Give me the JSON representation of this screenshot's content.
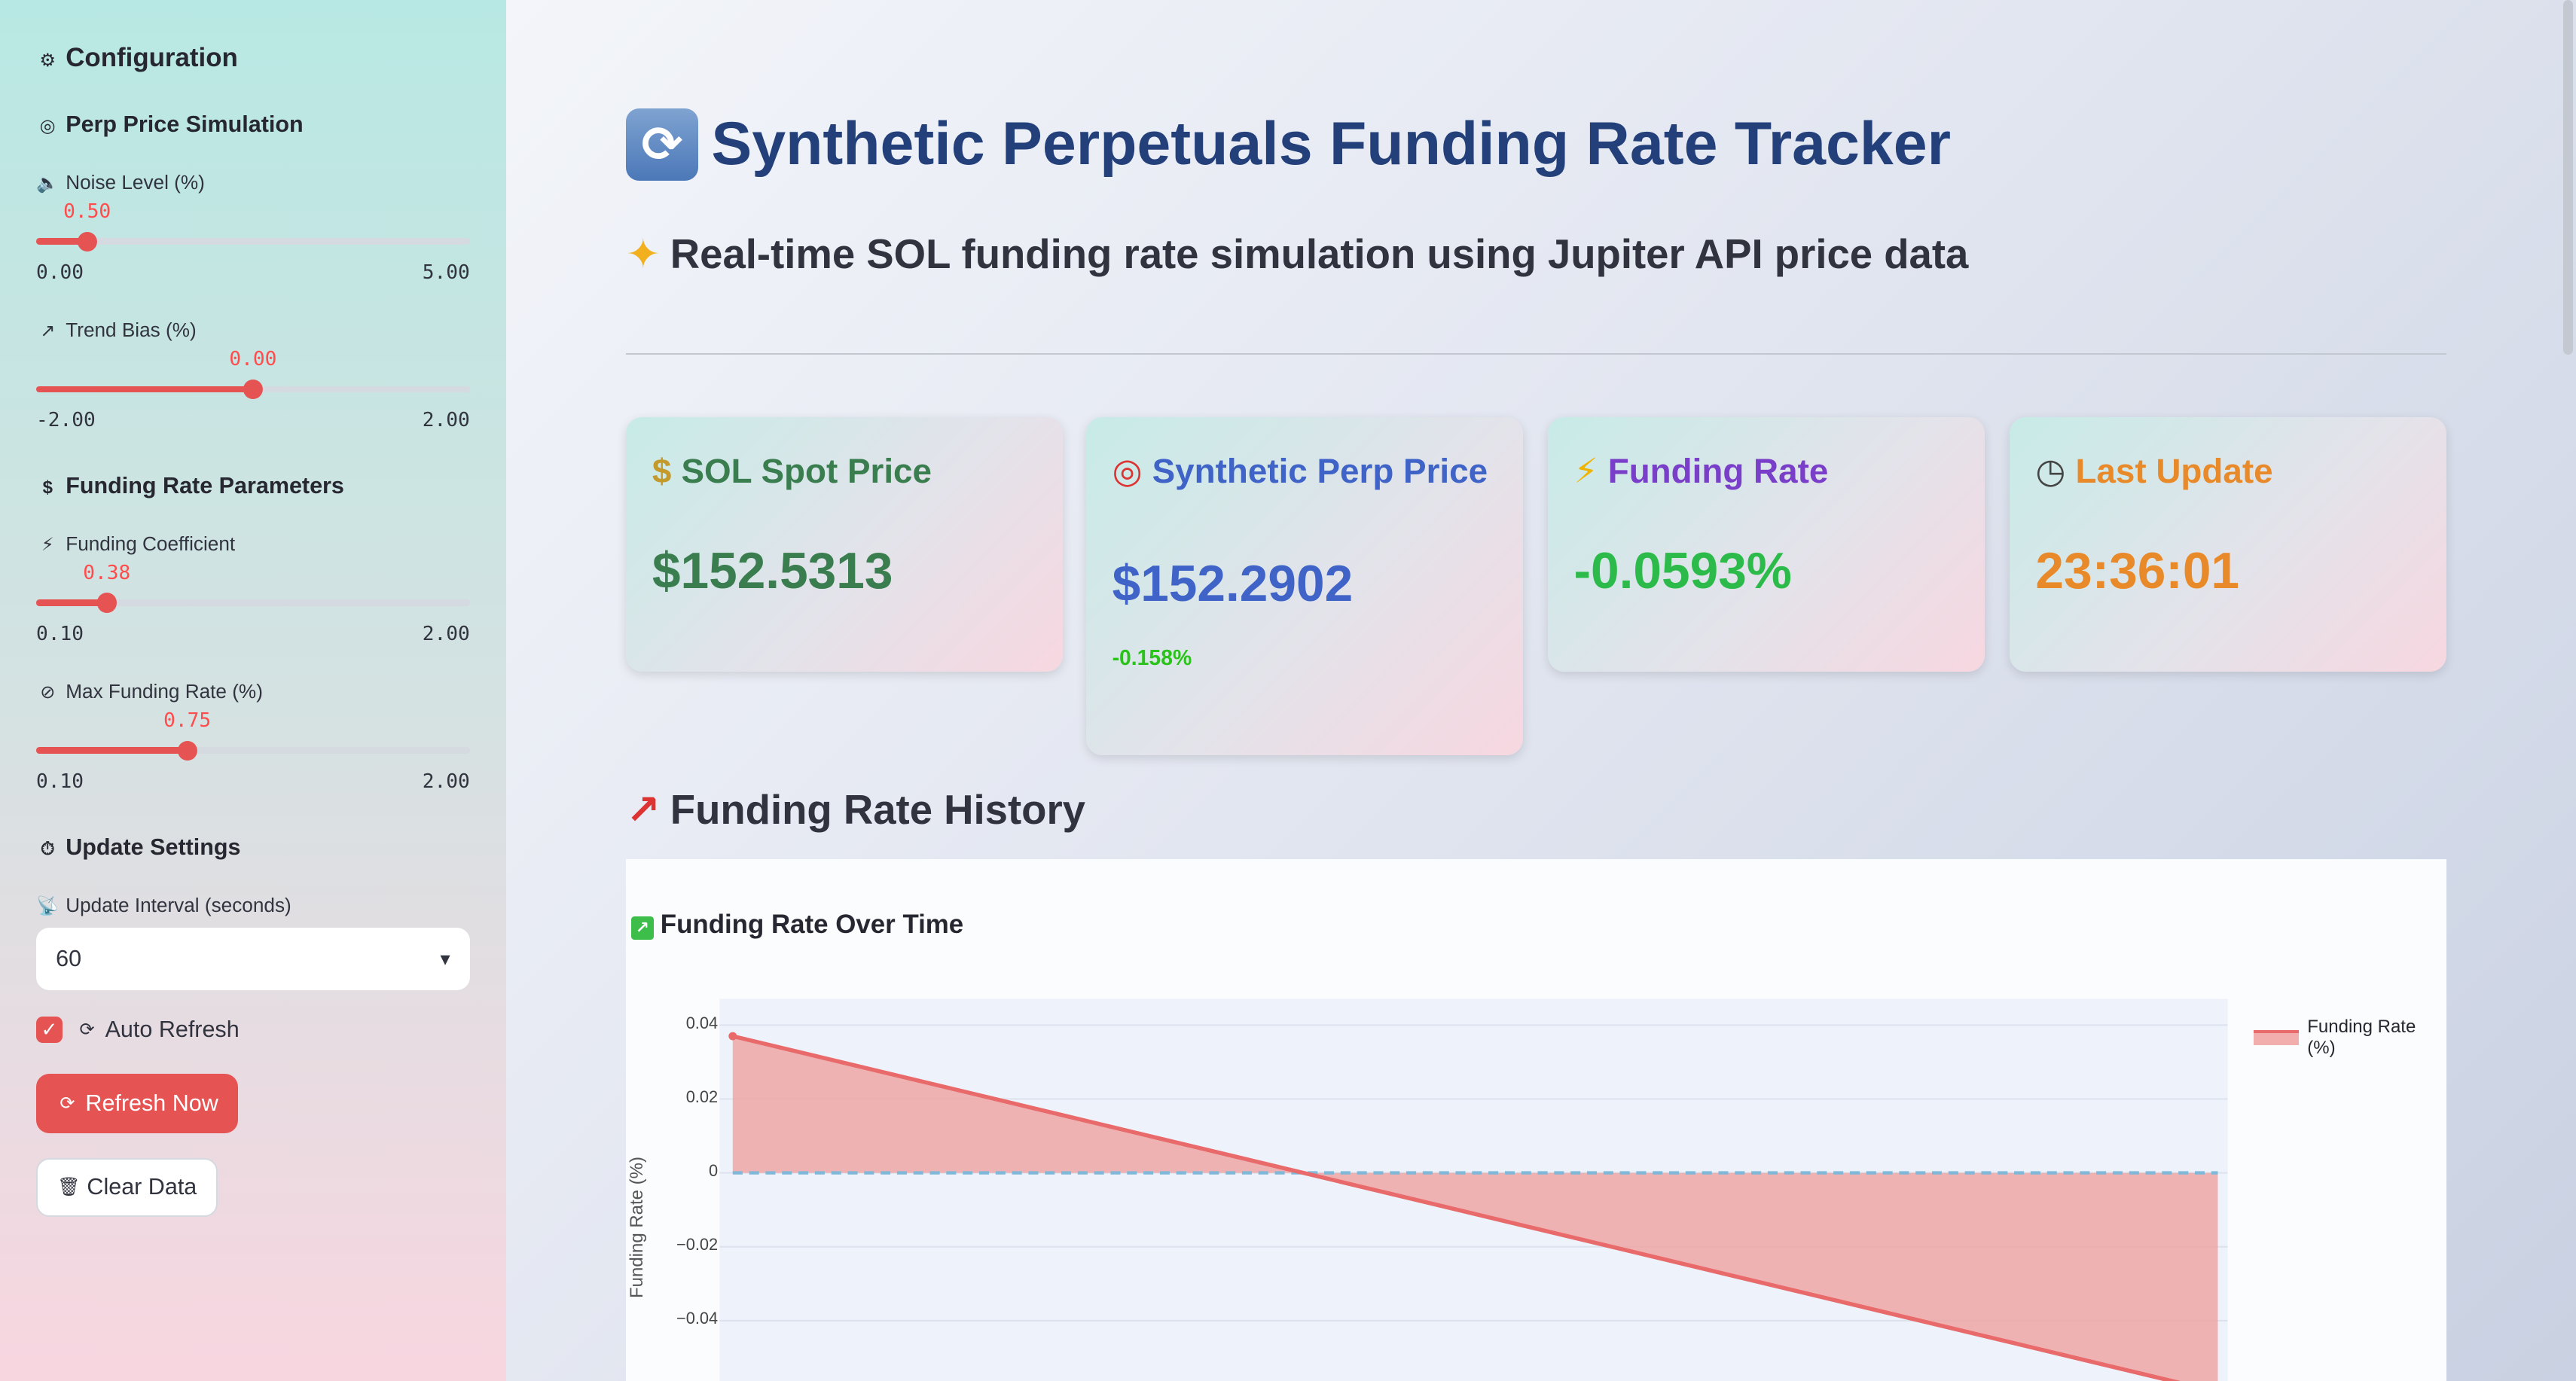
{
  "sidebar": {
    "config_title": "Configuration",
    "perp_section": "Perp Price Simulation",
    "noise": {
      "label": "Noise Level (%)",
      "value": "0.50",
      "min": "0.00",
      "max": "5.00",
      "fraction": 0.1
    },
    "trend": {
      "label": "Trend Bias (%)",
      "value": "0.00",
      "min": "-2.00",
      "max": "2.00",
      "fraction": 0.5
    },
    "funding_section": "Funding Rate Parameters",
    "coef": {
      "label": "Funding Coefficient",
      "value": "0.38",
      "min": "0.10",
      "max": "2.00",
      "fraction": 0.1474
    },
    "maxrate": {
      "label": "Max Funding Rate (%)",
      "value": "0.75",
      "min": "0.10",
      "max": "2.00",
      "fraction": 0.3421
    },
    "update_section": "Update Settings",
    "interval_label": "Update Interval (seconds)",
    "interval_value": "60",
    "auto_refresh_label": "Auto Refresh",
    "auto_refresh_checked": true,
    "refresh_button": "Refresh Now",
    "clear_button": "Clear Data"
  },
  "main": {
    "title": "Synthetic Perpetuals Funding Rate Tracker",
    "subtitle": "Real-time SOL funding rate simulation using Jupiter API price data",
    "cards": [
      {
        "title": "SOL Spot Price",
        "value": "$152.5313",
        "color": "#3a7d4f"
      },
      {
        "title": "Synthetic Perp Price",
        "value": "$152.2902",
        "delta": "-0.158%",
        "color": "#3f63c6"
      },
      {
        "title": "Funding Rate",
        "value": "-0.0593%",
        "color": "#2cbb4a",
        "title_color": "#7a3fc9"
      },
      {
        "title": "Last Update",
        "value": "23:36:01",
        "color": "#e88a2a"
      }
    ],
    "history_heading": "Funding Rate History"
  },
  "chart_data": {
    "type": "area",
    "title": "Funding Rate Over Time",
    "ylabel": "Funding Rate (%)",
    "xlabel": "",
    "ylim": [
      -0.05,
      0.0435
    ],
    "y_ticks": [
      "0.04",
      "0.02",
      "0",
      "−0.02",
      "−0.04"
    ],
    "series": [
      {
        "name": "Funding Rate (%)",
        "x": [
          0,
          1
        ],
        "values": [
          0.037,
          -0.0593
        ],
        "color": "#e86a6a"
      }
    ],
    "zero_line": true,
    "legend": "top-right"
  }
}
